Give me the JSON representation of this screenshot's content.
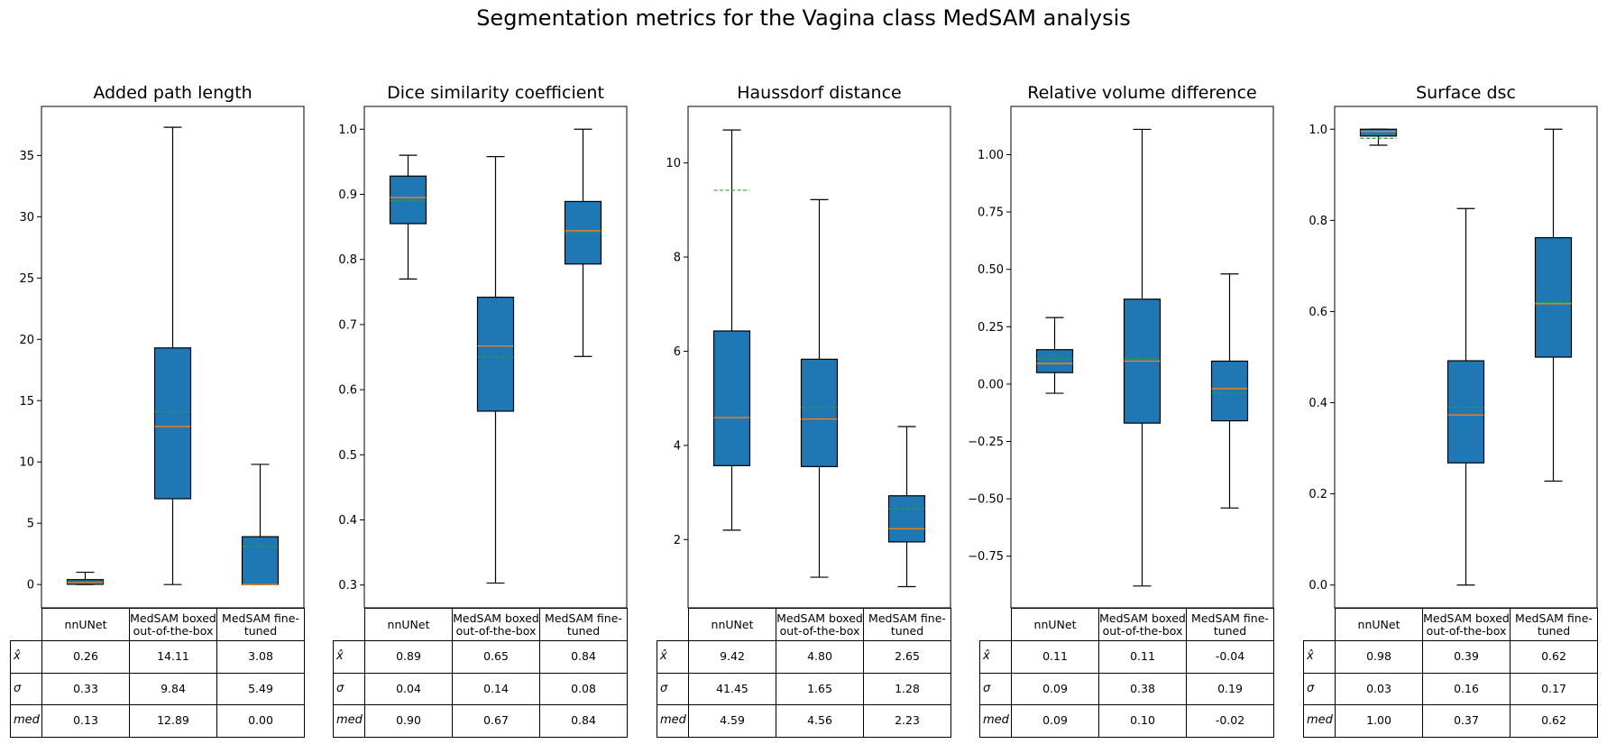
{
  "suptitle": "Segmentation metrics for the Vagina class MedSAM analysis",
  "colors": {
    "box": "#1f77b4",
    "median": "#ff7f0e",
    "mean": "#2ca02c",
    "whisker": "#000000"
  },
  "chart_data": [
    {
      "type": "box",
      "title": "Added path length",
      "ylim": [
        -1.9,
        39.0
      ],
      "yticks": [
        0,
        5,
        10,
        15,
        20,
        25,
        30,
        35
      ],
      "ytick_labels": [
        "0",
        "5",
        "10",
        "15",
        "20",
        "25",
        "30",
        "35"
      ],
      "categories": [
        "nnUNet",
        "MedSAM boxed out-of-the-box",
        "MedSAM fine-tuned"
      ],
      "boxes": [
        {
          "whislo": 0.0,
          "q1": 0.02,
          "med": 0.13,
          "q3": 0.4,
          "whishi": 1.0,
          "mean": 0.26
        },
        {
          "whislo": 0.0,
          "q1": 7.0,
          "med": 12.89,
          "q3": 19.3,
          "whishi": 37.3,
          "mean": 14.11
        },
        {
          "whislo": 0.0,
          "q1": 0.0,
          "med": 0.0,
          "q3": 3.9,
          "whishi": 9.8,
          "mean": 3.08
        }
      ],
      "table": {
        "col_labels": [
          "nnUNet",
          "MedSAM boxed\nout-of-the-box",
          "MedSAM fine-\ntuned"
        ],
        "rows": [
          {
            "label": "x̂",
            "values": [
              "0.26",
              "14.11",
              "3.08"
            ]
          },
          {
            "label": "σ",
            "values": [
              "0.33",
              "9.84",
              "5.49"
            ]
          },
          {
            "label": "med",
            "values": [
              "0.13",
              "12.89",
              "0.00"
            ]
          }
        ]
      }
    },
    {
      "type": "box",
      "title": "Dice similarity coefficient",
      "ylim": [
        0.265,
        1.035
      ],
      "yticks": [
        0.3,
        0.4,
        0.5,
        0.6,
        0.7,
        0.8,
        0.9,
        1.0
      ],
      "ytick_labels": [
        "0.3",
        "0.4",
        "0.5",
        "0.6",
        "0.7",
        "0.8",
        "0.9",
        "1.0"
      ],
      "categories": [
        "nnUNet",
        "MedSAM boxed out-of-the-box",
        "MedSAM fine-tuned"
      ],
      "boxes": [
        {
          "whislo": 0.77,
          "q1": 0.855,
          "med": 0.895,
          "q3": 0.928,
          "whishi": 0.96,
          "mean": 0.89
        },
        {
          "whislo": 0.303,
          "q1": 0.567,
          "med": 0.667,
          "q3": 0.742,
          "whishi": 0.958,
          "mean": 0.65
        },
        {
          "whislo": 0.651,
          "q1": 0.793,
          "med": 0.844,
          "q3": 0.889,
          "whishi": 1.0,
          "mean": 0.84
        }
      ],
      "table": {
        "col_labels": [
          "nnUNet",
          "MedSAM boxed\nout-of-the-box",
          "MedSAM fine-\ntuned"
        ],
        "rows": [
          {
            "label": "x̂",
            "values": [
              "0.89",
              "0.65",
              "0.84"
            ]
          },
          {
            "label": "σ",
            "values": [
              "0.04",
              "0.14",
              "0.08"
            ]
          },
          {
            "label": "med",
            "values": [
              "0.90",
              "0.67",
              "0.84"
            ]
          }
        ]
      }
    },
    {
      "type": "box",
      "title": "Haussdorf distance",
      "ylim": [
        0.55,
        11.2
      ],
      "yticks": [
        2,
        4,
        6,
        8,
        10
      ],
      "ytick_labels": [
        "2",
        "4",
        "6",
        "8",
        "10"
      ],
      "categories": [
        "nnUNet",
        "MedSAM boxed out-of-the-box",
        "MedSAM fine-tuned"
      ],
      "boxes": [
        {
          "whislo": 2.2,
          "q1": 3.57,
          "med": 4.59,
          "q3": 6.43,
          "whishi": 10.7,
          "mean": 9.42
        },
        {
          "whislo": 1.2,
          "q1": 3.55,
          "med": 4.56,
          "q3": 5.83,
          "whishi": 9.22,
          "mean": 4.8
        },
        {
          "whislo": 1.0,
          "q1": 1.95,
          "med": 2.23,
          "q3": 2.93,
          "whishi": 4.4,
          "mean": 2.65
        }
      ],
      "table": {
        "col_labels": [
          "nnUNet",
          "MedSAM boxed\nout-of-the-box",
          "MedSAM fine-\ntuned"
        ],
        "rows": [
          {
            "label": "x̂",
            "values": [
              "9.42",
              "4.80",
              "2.65"
            ]
          },
          {
            "label": "σ",
            "values": [
              "41.45",
              "1.65",
              "1.28"
            ]
          },
          {
            "label": "med",
            "values": [
              "4.59",
              "4.56",
              "2.23"
            ]
          }
        ]
      }
    },
    {
      "type": "box",
      "title": "Relative volume difference",
      "ylim": [
        -0.975,
        1.21
      ],
      "yticks": [
        -0.75,
        -0.5,
        -0.25,
        0.0,
        0.25,
        0.5,
        0.75,
        1.0
      ],
      "ytick_labels": [
        "−0.75",
        "−0.50",
        "−0.25",
        "0.00",
        "0.25",
        "0.50",
        "0.75",
        "1.00"
      ],
      "categories": [
        "nnUNet",
        "MedSAM boxed out-of-the-box",
        "MedSAM fine-tuned"
      ],
      "boxes": [
        {
          "whislo": -0.04,
          "q1": 0.05,
          "med": 0.09,
          "q3": 0.15,
          "whishi": 0.29,
          "mean": 0.11
        },
        {
          "whislo": -0.88,
          "q1": -0.17,
          "med": 0.1,
          "q3": 0.37,
          "whishi": 1.11,
          "mean": 0.11
        },
        {
          "whislo": -0.54,
          "q1": -0.16,
          "med": -0.02,
          "q3": 0.1,
          "whishi": 0.48,
          "mean": -0.04
        }
      ],
      "table": {
        "col_labels": [
          "nnUNet",
          "MedSAM boxed\nout-of-the-box",
          "MedSAM fine-\ntuned"
        ],
        "rows": [
          {
            "label": "x̂",
            "values": [
              "0.11",
              "0.11",
              "-0.04"
            ]
          },
          {
            "label": "σ",
            "values": [
              "0.09",
              "0.38",
              "0.19"
            ]
          },
          {
            "label": "med",
            "values": [
              "0.09",
              "0.10",
              "-0.02"
            ]
          }
        ]
      }
    },
    {
      "type": "box",
      "title": "Surface dsc",
      "ylim": [
        -0.05,
        1.05
      ],
      "yticks": [
        0.0,
        0.2,
        0.4,
        0.6,
        0.8,
        1.0
      ],
      "ytick_labels": [
        "0.0",
        "0.2",
        "0.4",
        "0.6",
        "0.8",
        "1.0"
      ],
      "categories": [
        "nnUNet",
        "MedSAM boxed out-of-the-box",
        "MedSAM fine-tuned"
      ],
      "boxes": [
        {
          "whislo": 0.965,
          "q1": 0.985,
          "med": 0.995,
          "q3": 1.0,
          "whishi": 1.0,
          "mean": 0.98
        },
        {
          "whislo": 0.0,
          "q1": 0.268,
          "med": 0.373,
          "q3": 0.492,
          "whishi": 0.826,
          "mean": 0.39
        },
        {
          "whislo": 0.228,
          "q1": 0.5,
          "med": 0.617,
          "q3": 0.762,
          "whishi": 1.0,
          "mean": 0.62
        }
      ],
      "table": {
        "col_labels": [
          "nnUNet",
          "MedSAM boxed\nout-of-the-box",
          "MedSAM fine-\ntuned"
        ],
        "rows": [
          {
            "label": "x̂",
            "values": [
              "0.98",
              "0.39",
              "0.62"
            ]
          },
          {
            "label": "σ",
            "values": [
              "0.03",
              "0.16",
              "0.17"
            ]
          },
          {
            "label": "med",
            "values": [
              "1.00",
              "0.37",
              "0.62"
            ]
          }
        ]
      }
    }
  ]
}
